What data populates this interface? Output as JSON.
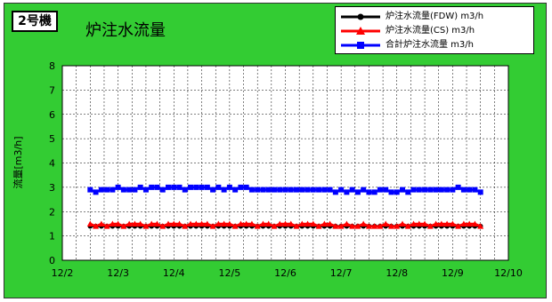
{
  "badge": "2号機",
  "chart_data": {
    "type": "line",
    "title": "炉注水流量",
    "xlabel": "",
    "ylabel": "流量[m3/h]",
    "ylim": [
      0,
      8
    ],
    "yticks": [
      "0",
      "1",
      "2",
      "3",
      "4",
      "5",
      "6",
      "7",
      "8"
    ],
    "xticks": [
      "12/2",
      "12/3",
      "12/4",
      "12/5",
      "12/6",
      "12/7",
      "12/8",
      "12/9",
      "12/10"
    ],
    "x_start_label": "12/2",
    "x_range_days": 8,
    "x_first": 0.5,
    "x_last": 7.5,
    "grid": true,
    "legend_position": "top-right",
    "series": [
      {
        "name": "炉注水流量(FDW) m3/h",
        "color": "#000000",
        "marker": "circle",
        "level": 1.4,
        "values": [
          1.4,
          1.4,
          1.4,
          1.4,
          1.4,
          1.4,
          1.4,
          1.4,
          1.4,
          1.4,
          1.4,
          1.4,
          1.4,
          1.4,
          1.4,
          1.4,
          1.4,
          1.4,
          1.4,
          1.4,
          1.4,
          1.4,
          1.4,
          1.4,
          1.4,
          1.4,
          1.4,
          1.4,
          1.4,
          1.4,
          1.4,
          1.4,
          1.4,
          1.4,
          1.4,
          1.4,
          1.4,
          1.4,
          1.4,
          1.4,
          1.4,
          1.4,
          1.4,
          1.4,
          1.4,
          1.4,
          1.4,
          1.4,
          1.4,
          1.4,
          1.4,
          1.4,
          1.4,
          1.4,
          1.4,
          1.4,
          1.4,
          1.4,
          1.4,
          1.4,
          1.4,
          1.4,
          1.4,
          1.4,
          1.4,
          1.4,
          1.4,
          1.4,
          1.4,
          1.4,
          1.4
        ]
      },
      {
        "name": "炉注水流量(CS) m3/h",
        "color": "#ff0000",
        "marker": "triangle",
        "values": [
          1.5,
          1.4,
          1.5,
          1.4,
          1.5,
          1.5,
          1.4,
          1.5,
          1.5,
          1.5,
          1.4,
          1.5,
          1.5,
          1.4,
          1.5,
          1.5,
          1.5,
          1.4,
          1.5,
          1.5,
          1.5,
          1.5,
          1.4,
          1.5,
          1.5,
          1.5,
          1.4,
          1.5,
          1.5,
          1.5,
          1.4,
          1.5,
          1.5,
          1.4,
          1.5,
          1.5,
          1.5,
          1.4,
          1.5,
          1.5,
          1.5,
          1.4,
          1.5,
          1.5,
          1.4,
          1.4,
          1.5,
          1.4,
          1.4,
          1.5,
          1.4,
          1.4,
          1.4,
          1.5,
          1.4,
          1.4,
          1.5,
          1.4,
          1.5,
          1.5,
          1.5,
          1.4,
          1.5,
          1.5,
          1.5,
          1.5,
          1.4,
          1.5,
          1.5,
          1.5,
          1.4
        ]
      },
      {
        "name": "合計炉注水流量 m3/h",
        "color": "#0000ff",
        "marker": "square",
        "values": [
          2.9,
          2.8,
          2.9,
          2.9,
          2.9,
          3.0,
          2.9,
          2.9,
          2.9,
          3.0,
          2.9,
          3.0,
          3.0,
          2.9,
          3.0,
          3.0,
          3.0,
          2.9,
          3.0,
          3.0,
          3.0,
          3.0,
          2.9,
          3.0,
          2.9,
          3.0,
          2.9,
          3.0,
          3.0,
          2.9,
          2.9,
          2.9,
          2.9,
          2.9,
          2.9,
          2.9,
          2.9,
          2.9,
          2.9,
          2.9,
          2.9,
          2.9,
          2.9,
          2.9,
          2.8,
          2.9,
          2.8,
          2.9,
          2.8,
          2.9,
          2.8,
          2.8,
          2.9,
          2.9,
          2.8,
          2.8,
          2.9,
          2.8,
          2.9,
          2.9,
          2.9,
          2.9,
          2.9,
          2.9,
          2.9,
          2.9,
          3.0,
          2.9,
          2.9,
          2.9,
          2.8
        ]
      }
    ]
  }
}
